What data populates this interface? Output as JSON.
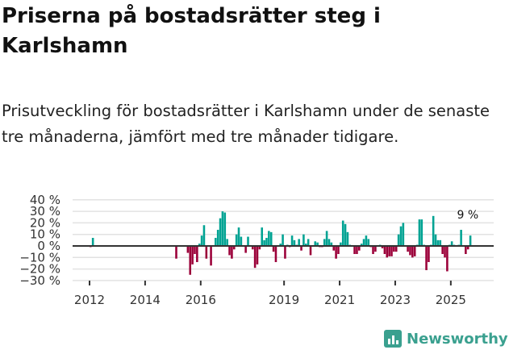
{
  "title": "Priserna på bostadsrätter steg i Karlshamn",
  "subtitle": "Prisutveckling för bostadsrätter i Karlshamn under de senaste tre månaderna, jämfört med tre månader tidigare.",
  "brand": "Newsworthy",
  "colors": {
    "positive": "#00a393",
    "negative": "#9b0039",
    "brand": "#3aa08f"
  },
  "chart_data": {
    "type": "bar",
    "start_month": "2012-01",
    "frequency": "monthly",
    "ylabel": "",
    "xlabel": "",
    "ylim": [
      -30,
      40
    ],
    "yticks": [
      40,
      30,
      20,
      10,
      0,
      -10,
      -20,
      -30
    ],
    "ytick_labels": [
      "40 %",
      "30 %",
      "20 %",
      "10 %",
      "0 %",
      "−10 %",
      "−20 %",
      "−30 %"
    ],
    "xticks": [
      2012,
      2014,
      2016,
      2019,
      2021,
      2023,
      2025
    ],
    "xtick_labels": [
      "2012",
      "2014",
      "2016",
      "2019",
      "2021",
      "2023",
      "2025"
    ],
    "grid": true,
    "annotation": "9 %",
    "values": [
      -1,
      7,
      null,
      null,
      null,
      null,
      null,
      null,
      null,
      null,
      null,
      null,
      null,
      null,
      null,
      null,
      null,
      null,
      null,
      null,
      null,
      null,
      null,
      null,
      null,
      null,
      null,
      null,
      null,
      null,
      null,
      null,
      null,
      null,
      null,
      null,
      null,
      -11,
      null,
      null,
      null,
      null,
      -6,
      -25,
      -16,
      -7,
      -14,
      2,
      9,
      18,
      -11,
      null,
      -17,
      null,
      7,
      14,
      24,
      30,
      29,
      6,
      -8,
      -11,
      -3,
      10,
      16,
      8,
      null,
      -6,
      8,
      null,
      -3,
      -19,
      -16,
      -3,
      16,
      5,
      7,
      13,
      12,
      -5,
      -14,
      null,
      2,
      10,
      -11,
      1,
      -1,
      9,
      5,
      1,
      6,
      -4,
      10,
      2,
      6,
      -8,
      null,
      4,
      3,
      -1,
      -1,
      6,
      13,
      6,
      3,
      -4,
      -11,
      -7,
      3,
      22,
      19,
      12,
      1,
      null,
      -7,
      -7,
      -4,
      2,
      6,
      9,
      6,
      -1,
      -7,
      -5,
      null,
      1,
      -2,
      -7,
      -10,
      -9,
      -9,
      -5,
      -5,
      10,
      17,
      20,
      null,
      -5,
      -8,
      -10,
      -9,
      1,
      23,
      23,
      1,
      -21,
      -14,
      1,
      26,
      10,
      5,
      5,
      -7,
      -10,
      -22,
      1,
      4,
      1,
      null,
      1,
      14,
      null,
      -7,
      -3,
      9
    ]
  }
}
